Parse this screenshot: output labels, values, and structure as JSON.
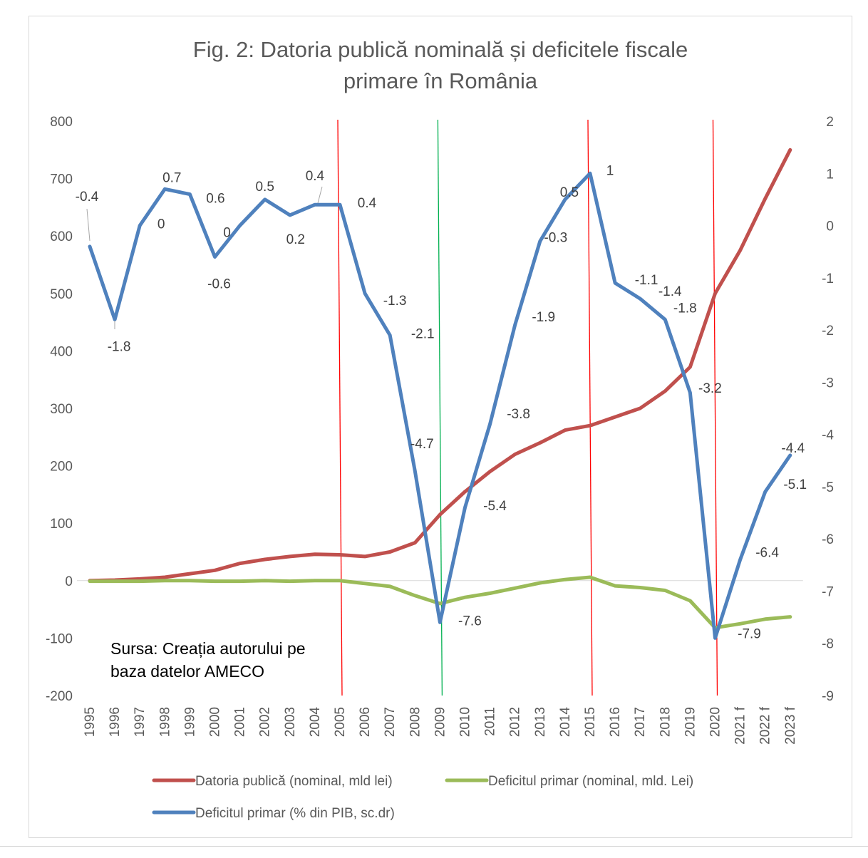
{
  "chart_data": {
    "type": "line",
    "title": "Fig. 2:  Datoria publică nominală și deficitele fiscale\nprimare în România",
    "categories": [
      "1995",
      "1996",
      "1997",
      "1998",
      "1999",
      "2000",
      "2001",
      "2002",
      "2003",
      "2004",
      "2005",
      "2006",
      "2007",
      "2008",
      "2009",
      "2010",
      "2011",
      "2012",
      "2013",
      "2014",
      "2015",
      "2016",
      "2017",
      "2018",
      "2019",
      "2020",
      "2021 f",
      "2022 f",
      "2023 f"
    ],
    "y_left": {
      "min": -200,
      "max": 800,
      "ticks": [
        "800",
        "700",
        "600",
        "500",
        "400",
        "300",
        "200",
        "100",
        "0",
        "-100",
        "-200"
      ]
    },
    "y_right": {
      "min": -9,
      "max": 2,
      "ticks": [
        "2",
        "1",
        "0",
        "-1",
        "-2",
        "-3",
        "-4",
        "-5",
        "-6",
        "-7",
        "-8",
        "-9"
      ]
    },
    "series": [
      {
        "name": "Datoria publică (nominal, mld lei)",
        "axis": "left",
        "color": "#c0504d",
        "values": [
          0,
          1,
          3,
          6,
          12,
          18,
          30,
          37,
          42,
          46,
          45,
          42,
          50,
          66,
          115,
          155,
          190,
          220,
          240,
          262,
          270,
          285,
          300,
          330,
          372,
          500,
          575,
          665,
          750
        ]
      },
      {
        "name": "Deficitul primar (nominal, mld. Lei)",
        "axis": "left",
        "color": "#9bbb59",
        "values": [
          -1,
          -1,
          -1,
          0,
          0,
          -1,
          -1,
          0,
          -1,
          0,
          0,
          -5,
          -10,
          -26,
          -40,
          -29,
          -22,
          -13,
          -4,
          2,
          6,
          -9,
          -12,
          -17,
          -35,
          -82,
          -75,
          -67,
          -63
        ]
      },
      {
        "name": "Deficitul primar (% din PIB, sc.dr)",
        "axis": "right",
        "color": "#4f81bd",
        "values": [
          -0.4,
          -1.8,
          0,
          0.7,
          0.6,
          -0.6,
          0,
          0.5,
          0.2,
          0.4,
          0.4,
          -1.3,
          -2.1,
          -4.7,
          -7.6,
          -5.4,
          -3.8,
          -1.9,
          -0.3,
          0.5,
          1,
          -1.1,
          -1.4,
          -1.8,
          -3.2,
          -7.9,
          -6.4,
          -5.1,
          -4.4
        ],
        "labels": [
          "-0.4",
          "-1.8",
          "0",
          "0.7",
          "0.6",
          "-0.6",
          "0",
          "0.5",
          "0.2",
          "0.4",
          "0.4",
          "-1.3",
          "-2.1",
          "-4.7",
          "-7.6",
          "-5.4",
          "-3.8",
          "-1.9",
          "-0.3",
          "0.5",
          "1",
          "-1.1",
          "-1.4",
          "-1.8",
          "-3.2",
          "-7.9",
          "-6.4",
          "-5.1",
          "-4.4"
        ]
      }
    ],
    "vertical_markers": [
      {
        "category": "2005",
        "color": "#ff0000"
      },
      {
        "category": "2009",
        "color": "#00b050"
      },
      {
        "category": "2015",
        "color": "#ff0000"
      },
      {
        "category": "2020",
        "color": "#ff0000"
      }
    ],
    "annotation": "Sursa: Creația autorului pe\nbaza datelor AMECO",
    "legend_position": "bottom",
    "grid": false
  }
}
